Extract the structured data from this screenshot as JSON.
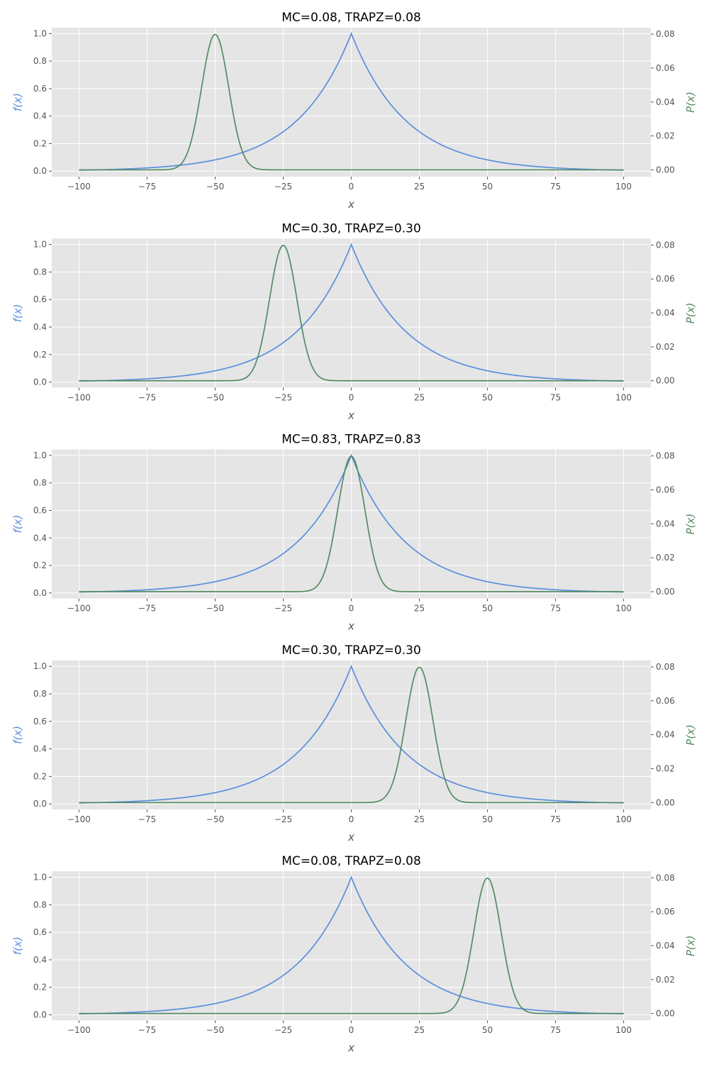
{
  "chart_data": {
    "type": "line",
    "shared": {
      "xlabel": "x",
      "ylabel_left": "f(x)",
      "ylabel_right": "P(x)",
      "xlim": [
        -110,
        110
      ],
      "ylim_left": [
        -0.04,
        1.043
      ],
      "ylim_right": [
        -0.004,
        0.0838
      ],
      "xticks": [
        -100,
        -75,
        -50,
        -25,
        0,
        25,
        50,
        75,
        100
      ],
      "xtick_labels": [
        "−100",
        "−75",
        "−50",
        "−25",
        "0",
        "25",
        "50",
        "75",
        "100"
      ],
      "yticks_left": [
        0.0,
        0.2,
        0.4,
        0.6,
        0.8,
        1.0
      ],
      "ytick_labels_left": [
        "0.0",
        "0.2",
        "0.4",
        "0.6",
        "0.8",
        "1.0"
      ],
      "yticks_right": [
        0.0,
        0.02,
        0.04,
        0.06,
        0.08
      ],
      "ytick_labels_right": [
        "0.00",
        "0.02",
        "0.04",
        "0.06",
        "0.08"
      ],
      "grid": true,
      "colors": {
        "f": "#5a8fdd",
        "P": "#548b64",
        "background": "#e5e5e5",
        "grid": "#ffffff",
        "tick_text": "#555555"
      },
      "f_curve": {
        "formula": "exp(-|x|/20)",
        "x_range": [
          -100,
          100
        ]
      },
      "P_curve": {
        "formula": "normal pdf, sigma 5",
        "sigma": 5,
        "peak": 0.08
      }
    },
    "panels": [
      {
        "title": "MC=0.08, TRAPZ=0.08",
        "P_mean": -50
      },
      {
        "title": "MC=0.30, TRAPZ=0.30",
        "P_mean": -25
      },
      {
        "title": "MC=0.83, TRAPZ=0.83",
        "P_mean": 0
      },
      {
        "title": "MC=0.30, TRAPZ=0.30",
        "P_mean": 25
      },
      {
        "title": "MC=0.08, TRAPZ=0.08",
        "P_mean": 50
      }
    ]
  }
}
